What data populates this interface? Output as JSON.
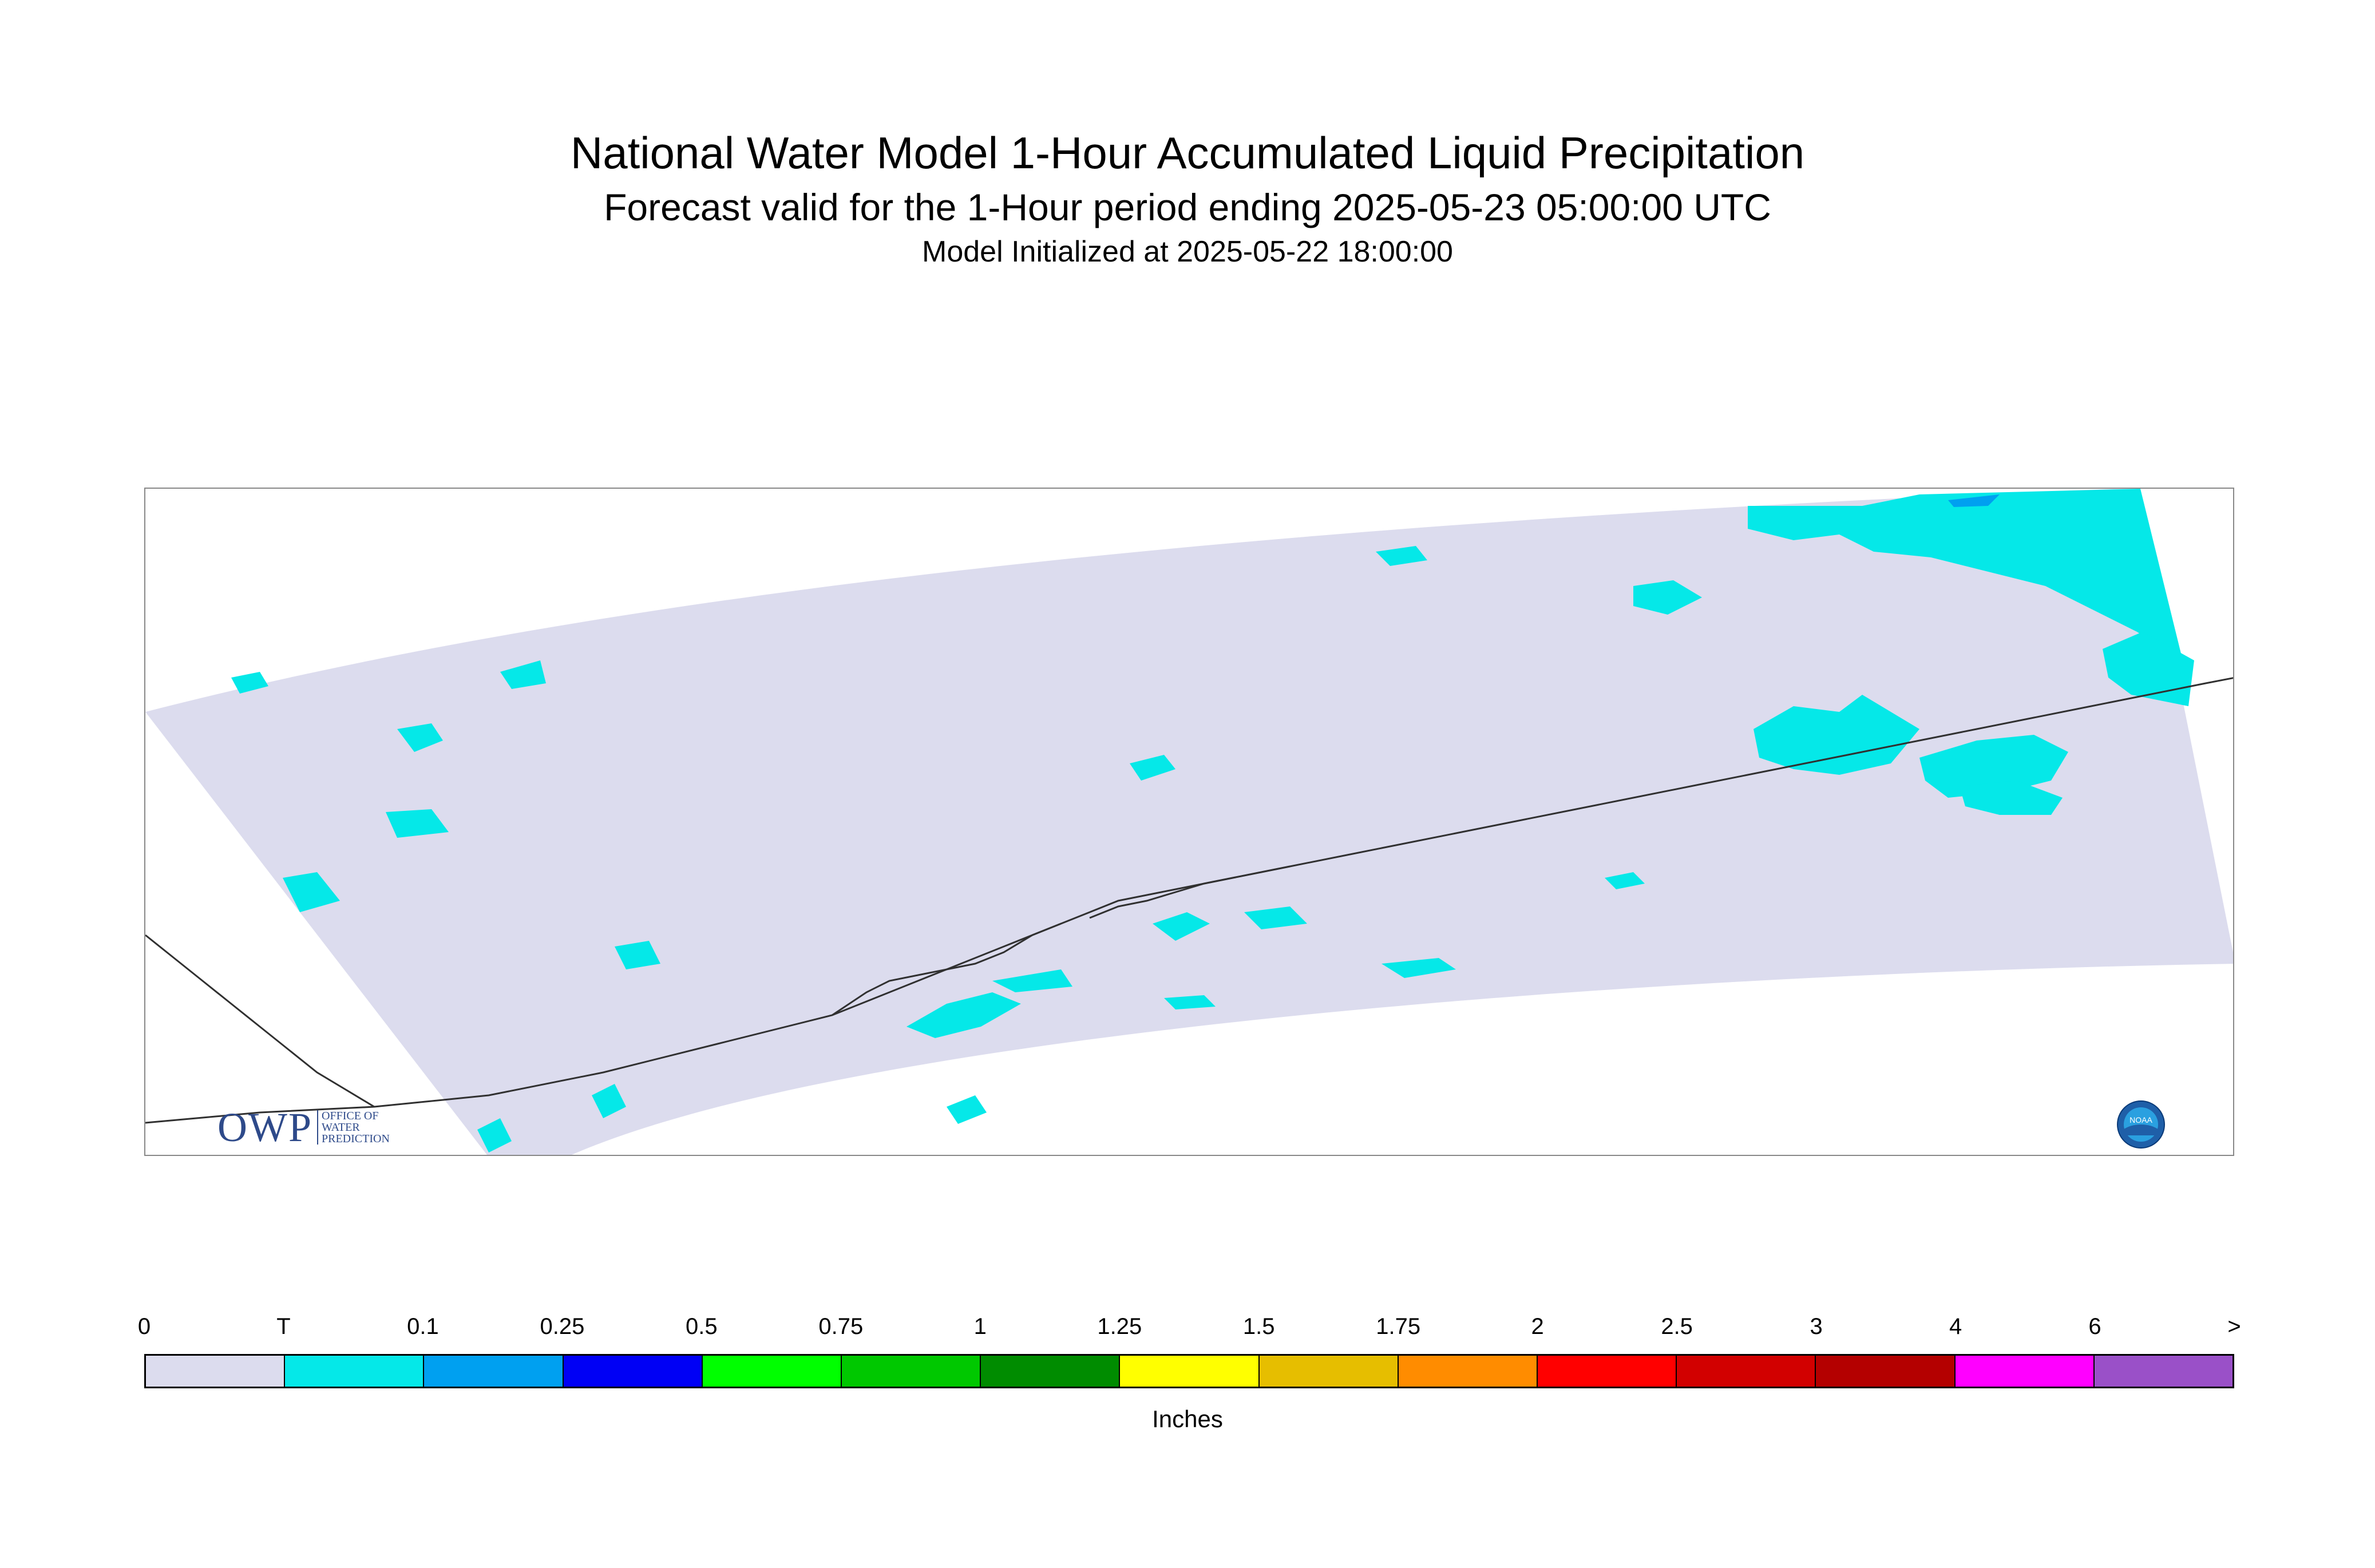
{
  "title": "National Water Model 1-Hour Accumulated Liquid Precipitation",
  "subtitle": "Forecast valid for the 1-Hour period ending 2025-05-23 05:00:00 UTC",
  "init_line": "Model Initialized at 2025-05-22 18:00:00",
  "legend": {
    "units": "Inches",
    "ticks": [
      "0",
      "T",
      "0.1",
      "0.25",
      "0.5",
      "0.75",
      "1",
      "1.25",
      "1.5",
      "1.75",
      "2",
      "2.5",
      "3",
      "4",
      "6",
      ">"
    ],
    "colors": [
      "#dcdcee",
      "#05e8e8",
      "#00a0f0",
      "#0000f5",
      "#00ff00",
      "#00c800",
      "#008c00",
      "#ffff00",
      "#e6be00",
      "#ff8c00",
      "#ff0000",
      "#d20000",
      "#b40000",
      "#ff00ff",
      "#9a50c8"
    ]
  },
  "logos": {
    "owp_letters": "OWP",
    "owp_line1": "OFFICE OF",
    "owp_line2": "WATER",
    "owp_line3": "PREDICTION",
    "noaa_text": "NOAA"
  },
  "map": {
    "domain_fill": "#dcdcee",
    "precip_color": "#05e8e8",
    "precip_heavy_color": "#00a0f0",
    "coast_color": "#303030"
  }
}
